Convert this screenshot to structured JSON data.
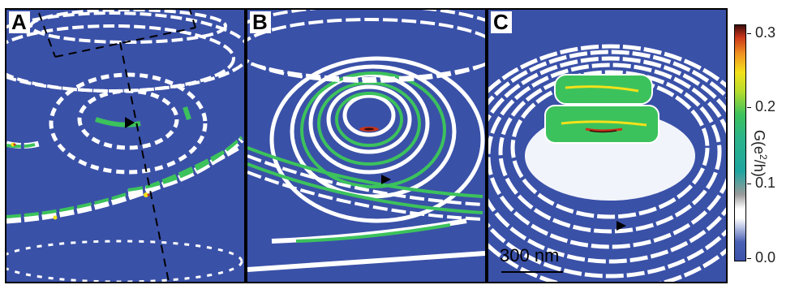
{
  "panels": [
    {
      "label": "A"
    },
    {
      "label": "B"
    },
    {
      "label": "C"
    }
  ],
  "scale_bar": {
    "text": "300 nm"
  },
  "colorbar": {
    "title_prefix": "G(e",
    "title_sup": "2",
    "title_suffix": "/h)",
    "ticks": [
      "0.3",
      "0.2",
      "0.1",
      "0.0"
    ]
  },
  "colors": {
    "background": "#3a51a8",
    "fringe_white": "#ffffff",
    "fringe_green": "#3cc25c",
    "fringe_yellow": "#f4e11a",
    "fringe_red": "#c93419"
  }
}
